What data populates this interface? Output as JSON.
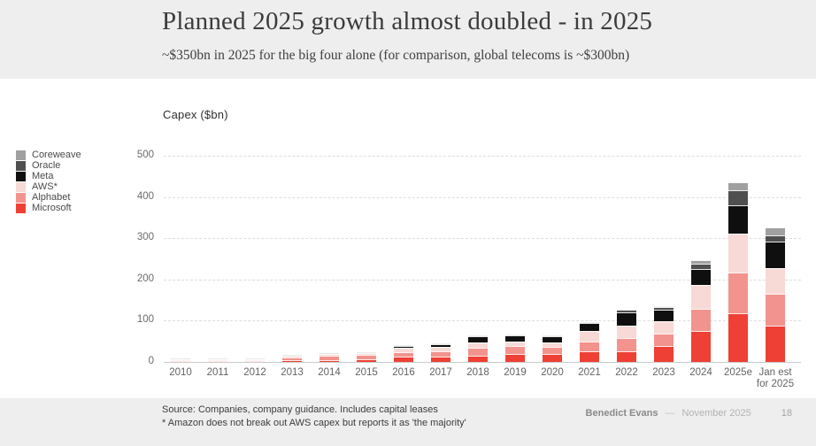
{
  "header": {
    "title": "Planned 2025 growth almost doubled - in 2025",
    "subtitle": "~$350bn in 2025 for the big four alone (for comparison, global telecoms is ~$300bn)"
  },
  "chart_data": {
    "type": "bar",
    "stacked": true,
    "title": "Capex ($bn)",
    "xlabel": "",
    "ylabel": "Capex ($bn)",
    "ylim": [
      0,
      500
    ],
    "yticks": [
      0,
      100,
      200,
      300,
      400,
      500
    ],
    "grid": "horizontal-dashed",
    "legend_position": "left",
    "categories": [
      [
        "2010"
      ],
      [
        "2011"
      ],
      [
        "2012"
      ],
      [
        "2013"
      ],
      [
        "2014"
      ],
      [
        "2015"
      ],
      [
        "2016"
      ],
      [
        "2017"
      ],
      [
        "2018"
      ],
      [
        "2019"
      ],
      [
        "2020"
      ],
      [
        "2021"
      ],
      [
        "2022"
      ],
      [
        "2023"
      ],
      [
        "2024"
      ],
      [
        "2025e"
      ],
      [
        "Jan est",
        "for 2025"
      ]
    ],
    "series": [
      {
        "name": "Microsoft",
        "color": "#ee4034",
        "values": [
          2,
          2.3,
          2.3,
          4.3,
          5.3,
          6,
          12,
          12,
          16,
          20,
          20,
          25,
          25,
          39,
          75,
          117,
          87
        ]
      },
      {
        "name": "Alphabet",
        "color": "#f2938d",
        "values": [
          1.5,
          2,
          2,
          7,
          10,
          10,
          11,
          12,
          20,
          19,
          18,
          23,
          33,
          30,
          53,
          99,
          78
        ]
      },
      {
        "name": "AWS*",
        "color": "#f7d9d5",
        "values": [
          0.5,
          1,
          1.5,
          4,
          5,
          5,
          10,
          11,
          13,
          11,
          10,
          26,
          30,
          31,
          58,
          94,
          62
        ]
      },
      {
        "name": "Meta",
        "color": "#0f0f0f",
        "values": [
          0.2,
          0.6,
          1.2,
          1.4,
          1.8,
          2.5,
          4.5,
          7,
          14,
          15,
          14,
          19,
          32,
          28,
          39,
          69,
          64
        ]
      },
      {
        "name": "Oracle",
        "color": "#4f4f4f",
        "values": [
          0,
          0,
          0,
          0,
          0,
          0,
          1.5,
          2,
          1.5,
          1.5,
          1.5,
          2,
          7,
          7,
          12,
          37,
          15
        ]
      },
      {
        "name": "Coreweave",
        "color": "#a0a0a0",
        "values": [
          0,
          0,
          0,
          0,
          0,
          0,
          0,
          0,
          0,
          0,
          0,
          0,
          1,
          2,
          9,
          20,
          19
        ]
      }
    ]
  },
  "legend": {
    "items": [
      {
        "label": "Coreweave",
        "color": "#a0a0a0"
      },
      {
        "label": "Oracle",
        "color": "#4f4f4f"
      },
      {
        "label": "Meta",
        "color": "#0f0f0f"
      },
      {
        "label": "AWS*",
        "color": "#f7d9d5"
      },
      {
        "label": "Alphabet",
        "color": "#f2938d"
      },
      {
        "label": "Microsoft",
        "color": "#ee4034"
      }
    ]
  },
  "footer": {
    "source_line1": "Source: Companies, company guidance. Includes capital leases",
    "source_line2": "* Amazon does not break out AWS capex but reports it as 'the majority'",
    "author": "Benedict Evans",
    "separator": "—",
    "date": "November 2025",
    "page_number": "18"
  }
}
